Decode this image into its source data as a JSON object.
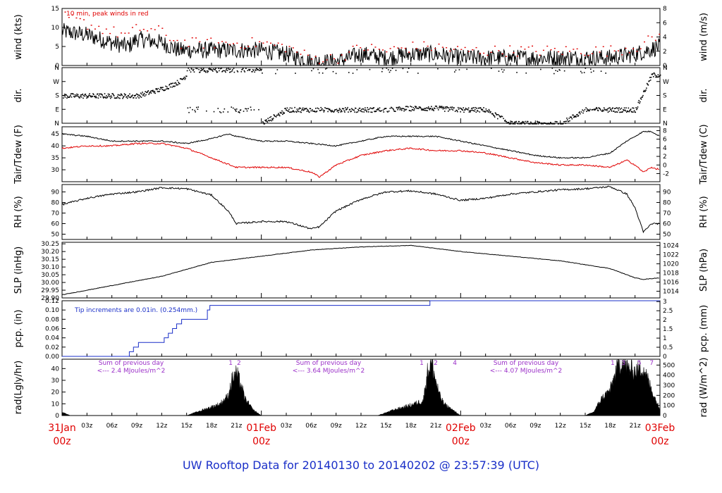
{
  "title": {
    "prefix": "UW Rooftop Data for ",
    "from": "20140130",
    "to_word": "to",
    "to": "20140202",
    "at": "@ 23:57:39",
    "tz": "(UTC)"
  },
  "colors": {
    "black": "#000000",
    "red": "#e00000",
    "blue": "#1a2fc8",
    "purple": "#9b30c8"
  },
  "x_axis": {
    "range_hours": [
      0,
      72
    ],
    "ticks": [
      {
        "h": 3,
        "label": "03z"
      },
      {
        "h": 6,
        "label": "06z"
      },
      {
        "h": 9,
        "label": "09z"
      },
      {
        "h": 12,
        "label": "12z"
      },
      {
        "h": 15,
        "label": "15z"
      },
      {
        "h": 18,
        "label": "18z"
      },
      {
        "h": 21,
        "label": "21z"
      },
      {
        "h": 27,
        "label": "03z"
      },
      {
        "h": 30,
        "label": "06z"
      },
      {
        "h": 33,
        "label": "09z"
      },
      {
        "h": 36,
        "label": "12z"
      },
      {
        "h": 39,
        "label": "15z"
      },
      {
        "h": 42,
        "label": "18z"
      },
      {
        "h": 45,
        "label": "21z"
      },
      {
        "h": 51,
        "label": "03z"
      },
      {
        "h": 54,
        "label": "06z"
      },
      {
        "h": 57,
        "label": "09z"
      },
      {
        "h": 60,
        "label": "12z"
      },
      {
        "h": 63,
        "label": "15z"
      },
      {
        "h": 66,
        "label": "18z"
      },
      {
        "h": 69,
        "label": "21z"
      }
    ],
    "dates": [
      {
        "h": 0,
        "date": "31Jan",
        "hour": "00z"
      },
      {
        "h": 24,
        "date": "01Feb",
        "hour": "00z"
      },
      {
        "h": 48,
        "date": "02Feb",
        "hour": "00z"
      },
      {
        "h": 72,
        "date": "03Feb",
        "hour": "00z"
      }
    ]
  },
  "panels": {
    "wind": {
      "ylabel_left": "wind (kts)",
      "ylabel_right": "wind (m/s)",
      "ylim": [
        0,
        15
      ],
      "ticks_left": [
        "0",
        "5",
        "10",
        "15"
      ],
      "ylim_right": [
        0,
        8
      ],
      "ticks_right": [
        "0",
        "2",
        "4",
        "6",
        "8"
      ],
      "note": "10 min, peak winds in red"
    },
    "dir": {
      "ylabel_left": "dir.",
      "ylabel_right": "dir.",
      "ticks": [
        "N",
        "E",
        "S",
        "W",
        "N"
      ]
    },
    "temp": {
      "ylabel_left": "Tair/Tdew (F)",
      "ylabel_right": "Tair/Tdew (C)",
      "ylim": [
        25,
        48
      ],
      "ticks_left": [
        "30",
        "35",
        "40",
        "45"
      ],
      "ticks_right": [
        "-2",
        "0",
        "2",
        "4",
        "6",
        "8"
      ]
    },
    "rh": {
      "ylabel_left": "RH (%)",
      "ylabel_right": "RH (%)",
      "ylim": [
        45,
        97
      ],
      "ticks": [
        "50",
        "60",
        "70",
        "80",
        "90"
      ]
    },
    "slp": {
      "ylabel_left": "SLP (inHg)",
      "ylabel_right": "SLP (hPa)",
      "ylim": [
        29.9,
        30.26
      ],
      "ticks_left": [
        "29.90",
        "29.95",
        "30.00",
        "30.05",
        "30.10",
        "30.15",
        "30.20",
        "30.25"
      ],
      "ticks_right": [
        "1014",
        "1016",
        "1018",
        "1020",
        "1022",
        "1024"
      ]
    },
    "pcp": {
      "ylabel_left": "pcp. (in)",
      "ylabel_right": "pcp. (mm)",
      "ylim": [
        0,
        0.12
      ],
      "ticks_left": [
        "0.00",
        "0.02",
        "0.04",
        "0.06",
        "0.08",
        "0.10",
        "0.12"
      ],
      "ticks_right": [
        "0",
        "0.5",
        "1",
        "1.5",
        "2",
        "2.5",
        "3"
      ],
      "note": "Tip increments are 0.01in. (0.254mm.)"
    },
    "rad": {
      "ylabel_left": "rad(Lgly/hr)",
      "ylabel_right": "rad (W/m^2)",
      "ylim": [
        0,
        48
      ],
      "ticks_left": [
        "0",
        "10",
        "20",
        "30",
        "40"
      ],
      "ticks_right": [
        "0",
        "100",
        "200",
        "300",
        "400",
        "500"
      ],
      "annotations": [
        {
          "line1": "Sum of previous day",
          "line2": "<--- 2.4 MJoules/m^2"
        },
        {
          "line1": "Sum of previous day",
          "line2": "<--- 3.64 MJoules/m^2"
        },
        {
          "line1": "Sum of previous day",
          "line2": "<--- 4.07 MJoules/m^2"
        }
      ],
      "day_markers": [
        {
          "h": 20.3,
          "label": "1"
        },
        {
          "h": 21.3,
          "label": "2"
        },
        {
          "h": 43.3,
          "label": "1"
        },
        {
          "h": 45.0,
          "label": "2"
        },
        {
          "h": 47.3,
          "label": "4"
        },
        {
          "h": 66.3,
          "label": "1"
        },
        {
          "h": 67.6,
          "label": "3"
        },
        {
          "h": 69.5,
          "label": "5"
        },
        {
          "h": 71.0,
          "label": "7"
        }
      ]
    }
  },
  "chart_data": [
    {
      "type": "line",
      "panel": "wind",
      "x_unit": "hours from 31Jan 00z",
      "ylim": [
        0,
        15
      ],
      "series": [
        {
          "color": "black",
          "x": [
            0,
            3,
            6,
            8,
            9,
            12,
            14,
            16,
            18,
            21,
            24,
            27,
            30,
            33,
            36,
            39,
            42,
            45,
            48,
            51,
            54,
            57,
            60,
            63,
            66,
            69,
            72
          ],
          "y": [
            9,
            8,
            6,
            5,
            7,
            6,
            4,
            4,
            4,
            4,
            4,
            3,
            1,
            1,
            3,
            2,
            3,
            3,
            2,
            2,
            2,
            2,
            2,
            2,
            2,
            3,
            5
          ]
        },
        {
          "name": "peak winds in red",
          "color": "red",
          "x": [
            0,
            3,
            6,
            8,
            9,
            12,
            14,
            16,
            18,
            21,
            24,
            27,
            30,
            33,
            36,
            39,
            42,
            45,
            48,
            51,
            54,
            57,
            60,
            63,
            66,
            69,
            72
          ],
          "y": [
            13,
            11,
            9,
            8,
            10,
            9,
            6,
            6,
            6,
            6,
            6,
            5,
            2,
            2,
            5,
            4,
            5,
            5,
            4,
            4,
            4,
            4,
            4,
            4,
            4,
            5,
            8
          ]
        }
      ]
    },
    {
      "type": "scatter",
      "panel": "dir",
      "yticks": [
        "N",
        "E",
        "S",
        "W",
        "N"
      ],
      "series": [
        {
          "color": "black",
          "x": [
            0,
            3,
            6,
            9,
            12,
            14,
            15,
            18,
            21,
            24,
            27,
            30,
            33,
            36,
            39,
            42,
            45,
            48,
            51,
            54,
            57,
            60,
            63,
            66,
            69,
            71
          ],
          "y": [
            "S",
            "S",
            "S",
            "S",
            "SW",
            "W",
            "NW",
            "N",
            "N",
            "N",
            "E",
            "E",
            "E",
            "E",
            "E",
            "ESE",
            "ESE",
            "E",
            "E",
            "N",
            "N",
            "N",
            "E",
            "E",
            "E",
            "NW"
          ]
        }
      ]
    },
    {
      "type": "line",
      "panel": "temp",
      "x_unit": "hours from 31Jan 00z",
      "ylim": [
        25,
        48
      ],
      "series": [
        {
          "color": "black",
          "x": [
            0,
            3,
            6,
            9,
            12,
            15,
            18,
            20,
            21,
            24,
            27,
            30,
            33,
            36,
            39,
            42,
            45,
            48,
            51,
            54,
            57,
            60,
            63,
            66,
            68,
            70,
            71,
            72
          ],
          "y": [
            45,
            44,
            42,
            42,
            42,
            41,
            43,
            45,
            44,
            42,
            42,
            41,
            40,
            42,
            44,
            44,
            44,
            42,
            40,
            38,
            36,
            35,
            35,
            37,
            42,
            46,
            46,
            44
          ]
        },
        {
          "color": "red",
          "x": [
            0,
            3,
            6,
            9,
            12,
            15,
            18,
            21,
            24,
            27,
            30,
            31,
            33,
            36,
            39,
            42,
            45,
            48,
            51,
            54,
            57,
            60,
            63,
            66,
            68,
            69,
            70,
            71,
            72
          ],
          "y": [
            39,
            40,
            40,
            41,
            41,
            39,
            35,
            31,
            31,
            31,
            29,
            27,
            32,
            36,
            38,
            39,
            38,
            38,
            37,
            35,
            33,
            32,
            32,
            31,
            34,
            32,
            29,
            31,
            30
          ]
        }
      ]
    },
    {
      "type": "line",
      "panel": "rh",
      "x_unit": "hours from 31Jan 00z",
      "ylim": [
        45,
        97
      ],
      "series": [
        {
          "color": "black",
          "x": [
            0,
            3,
            6,
            9,
            12,
            15,
            18,
            20,
            21,
            24,
            27,
            30,
            31,
            33,
            36,
            39,
            42,
            45,
            48,
            51,
            54,
            57,
            60,
            63,
            66,
            68,
            69,
            70,
            71,
            72
          ],
          "y": [
            78,
            84,
            88,
            90,
            94,
            93,
            87,
            72,
            60,
            62,
            62,
            55,
            57,
            72,
            83,
            90,
            91,
            88,
            82,
            84,
            88,
            90,
            92,
            93,
            95,
            88,
            75,
            52,
            60,
            60
          ]
        }
      ]
    },
    {
      "type": "line",
      "panel": "slp",
      "x_unit": "hours from 31Jan 00z",
      "ylim": [
        29.9,
        30.26
      ],
      "series": [
        {
          "color": "black",
          "x": [
            0,
            6,
            12,
            18,
            21,
            24,
            30,
            36,
            42,
            48,
            54,
            60,
            66,
            69,
            70,
            72
          ],
          "y": [
            29.92,
            29.98,
            30.04,
            30.13,
            30.15,
            30.17,
            30.21,
            30.23,
            30.24,
            30.2,
            30.17,
            30.14,
            30.09,
            30.03,
            30.02,
            30.03
          ]
        }
      ]
    },
    {
      "type": "line",
      "panel": "pcp",
      "x_unit": "hours from 31Jan 00z",
      "ylim": [
        0,
        0.12
      ],
      "series": [
        {
          "color": "blue",
          "x": [
            0,
            8.1,
            8.6,
            9.2,
            12.3,
            12.8,
            13.3,
            13.8,
            14.4,
            17.5,
            17.8,
            44.3,
            72
          ],
          "y": [
            0,
            0.01,
            0.02,
            0.03,
            0.04,
            0.05,
            0.06,
            0.07,
            0.08,
            0.1,
            0.11,
            0.12,
            0.12
          ]
        }
      ]
    },
    {
      "type": "area",
      "panel": "rad",
      "x_unit": "hours from 31Jan 00z",
      "ylim": [
        0,
        48
      ],
      "series": [
        {
          "color": "black",
          "x": [
            0,
            1,
            15,
            17,
            19,
            20,
            20.5,
            21,
            21.5,
            22,
            23,
            24,
            38,
            40,
            42,
            43.5,
            44,
            44.5,
            45,
            45.5,
            46,
            47,
            48,
            63,
            64,
            65,
            66,
            67,
            67.5,
            68,
            69,
            70,
            71,
            72
          ],
          "y": [
            3,
            0,
            0,
            5,
            10,
            17,
            32,
            37,
            28,
            15,
            5,
            0,
            0,
            5,
            9,
            13,
            38,
            47,
            30,
            17,
            10,
            5,
            0,
            0,
            3,
            15,
            22,
            44,
            47,
            42,
            38,
            42,
            22,
            5
          ]
        }
      ]
    }
  ]
}
